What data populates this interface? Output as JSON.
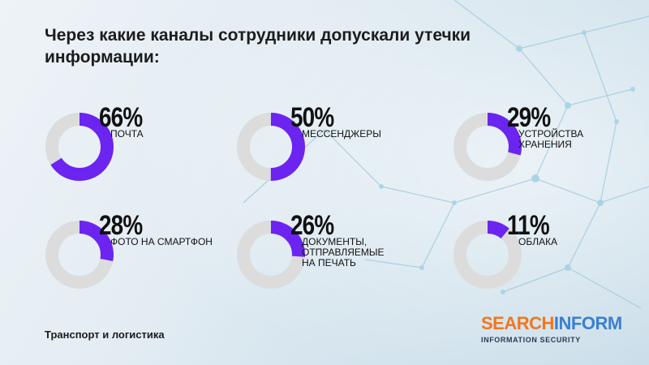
{
  "title": "Через какие каналы сотрудники допускали утечки информации:",
  "footer": "Транспорт и логистика",
  "logo": {
    "part1": "SEARCH",
    "part2": "INFORM",
    "tagline": "INFORMATION SECURITY"
  },
  "colors": {
    "ring_fill": "#6c24f0",
    "ring_track": "#dcdcdc",
    "logo_orange": "#f2761e",
    "logo_blue": "#3a7fd0"
  },
  "chart_data": {
    "type": "pie",
    "title": "Через какие каналы сотрудники допускали утечки информации:",
    "categories": [
      "ПОЧТА",
      "МЕССЕНДЖЕРЫ",
      "УСТРОЙСТВА\nХРАНЕНИЯ",
      "ФОТО НА СМАРТФОН",
      "ДОКУМЕНТЫ,\nОТПРАВЛЯЕМЫЕ\nНА ПЕЧАТЬ",
      "ОБЛАКА"
    ],
    "values": [
      66,
      50,
      29,
      28,
      26,
      11
    ],
    "labels": [
      "66%",
      "50%",
      "29%",
      "28%",
      "26%",
      "11%"
    ]
  }
}
